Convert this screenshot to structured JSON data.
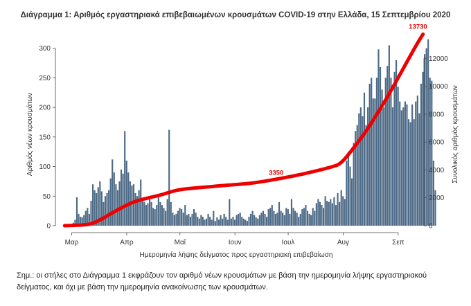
{
  "chart_data": {
    "type": "bar",
    "title": "Διάγραμμα 1: Αριθμός εργαστηριακά επιβεβαιωμένων κρουσμάτων COVID-19 στην Ελλάδα, 15 Σεπτεμβρίου 2020",
    "xlabel": "Ημερομηνία λήψης δείγματος προς εργαστηριακή επιβεβαίωση",
    "ylabel": "Αριθμός νέων κρουσμάτων",
    "y2label": "Συνολικός αριθμός κρουσμάτων",
    "x_tick_labels": [
      "Μαρ",
      "Απρ",
      "Μαΐ",
      "Ιουν",
      "Ιουλ",
      "Αυγ",
      "Σεπ"
    ],
    "ylim": [
      0,
      330
    ],
    "y_ticks": [
      0,
      50,
      100,
      150,
      200,
      250,
      300
    ],
    "y2lim": [
      0,
      14000
    ],
    "y2_ticks": [
      0,
      2000,
      4000,
      6000,
      8000,
      10000,
      12000
    ],
    "grid": false,
    "legend": "none",
    "colors": {
      "bars": "#4d6a86",
      "cumulative": "#ee0000"
    },
    "series": [
      {
        "type": "bar",
        "axis": "left",
        "start_date": "2020-02-26",
        "values": [
          3,
          1,
          1,
          2,
          2,
          5,
          10,
          48,
          20,
          15,
          14,
          18,
          25,
          30,
          20,
          42,
          70,
          60,
          55,
          65,
          75,
          58,
          40,
          50,
          55,
          60,
          80,
          112,
          90,
          70,
          60,
          75,
          95,
          88,
          160,
          110,
          90,
          75,
          68,
          70,
          55,
          50,
          60,
          78,
          45,
          40,
          35,
          38,
          50,
          40,
          30,
          28,
          35,
          48,
          40,
          35,
          30,
          25,
          45,
          162,
          40,
          22,
          18,
          20,
          25,
          30,
          28,
          22,
          35,
          18,
          20,
          15,
          20,
          28,
          22,
          15,
          12,
          18,
          15,
          10,
          12,
          20,
          15,
          10,
          25,
          8,
          14,
          10,
          18,
          12,
          20,
          15,
          10,
          45,
          12,
          15,
          10,
          18,
          20,
          22,
          15,
          12,
          10,
          8,
          15,
          20,
          25,
          18,
          14,
          12,
          18,
          22,
          25,
          20,
          15,
          28,
          30,
          35,
          25,
          20,
          22,
          40,
          25,
          22,
          18,
          30,
          28,
          20,
          45,
          30,
          25,
          22,
          15,
          20,
          28,
          30,
          35,
          25,
          20,
          18,
          30,
          25,
          38,
          45,
          40,
          35,
          30,
          50,
          42,
          40,
          45,
          38,
          48,
          35,
          55,
          40,
          60,
          50,
          45,
          110,
          125,
          100,
          80,
          140,
          160,
          170,
          190,
          200,
          185,
          225,
          170,
          200,
          240,
          250,
          215,
          215,
          250,
          298,
          268,
          230,
          200,
          250,
          270,
          305,
          250,
          200,
          260,
          280,
          235,
          210,
          195,
          200,
          210,
          205,
          180,
          175,
          205,
          180,
          210,
          220,
          190,
          240,
          260,
          290,
          300,
          315,
          250,
          245,
          110,
          60
        ]
      },
      {
        "type": "line",
        "axis": "right",
        "name": "Συνολικός αριθμός κρουσμάτων",
        "start_date": "2020-02-26",
        "end_date": "2020-09-15",
        "points": [
          [
            "2020-02-26",
            0
          ],
          [
            "2020-03-10",
            90
          ],
          [
            "2020-03-17",
            420
          ],
          [
            "2020-03-25",
            1000
          ],
          [
            "2020-04-05",
            1700
          ],
          [
            "2020-04-20",
            2200
          ],
          [
            "2020-05-01",
            2580
          ],
          [
            "2020-05-20",
            2820
          ],
          [
            "2020-06-10",
            3050
          ],
          [
            "2020-06-25",
            3350
          ],
          [
            "2020-07-10",
            3730
          ],
          [
            "2020-07-25",
            4200
          ],
          [
            "2020-07-31",
            4550
          ],
          [
            "2020-08-07",
            5600
          ],
          [
            "2020-08-14",
            6800
          ],
          [
            "2020-08-21",
            8200
          ],
          [
            "2020-08-28",
            9700
          ],
          [
            "2020-09-04",
            11300
          ],
          [
            "2020-09-11",
            12900
          ],
          [
            "2020-09-15",
            13730
          ]
        ]
      }
    ],
    "annotations": [
      {
        "label": "3350",
        "date": "2020-06-25",
        "value": 3350
      },
      {
        "label": "13730",
        "date": "2020-09-15",
        "value": 13730
      }
    ]
  },
  "note": "Σημ.: οι στήλες στο Διάγραμμα 1 εκφράζουν τον αριθμό νέων κρουσμάτων με βάση την ημερομηνία λήψης εργαστηριακού δείγματος, και όχι με βάση την ημερομηνία ανακοίνωσης των κρουσμάτων."
}
